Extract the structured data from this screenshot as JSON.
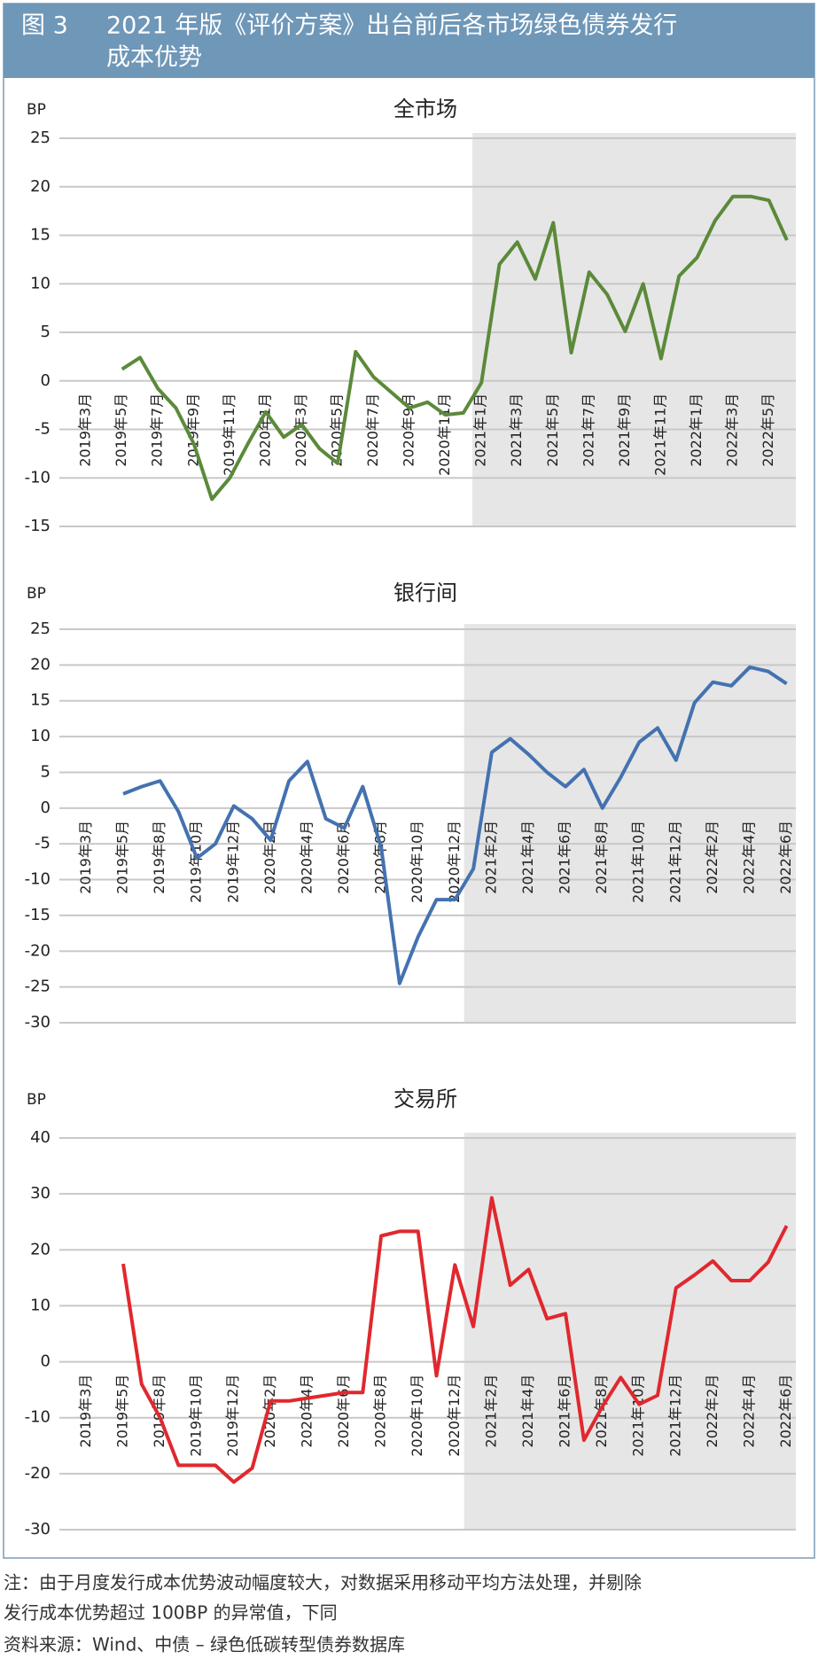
{
  "figure_label": "图 3",
  "figure_title": [
    "2021 年版《评价方案》出台前后各市场绿色债券发行",
    "成本优势"
  ],
  "notes": [
    "注：由于月度发行成本优势波动幅度较大，对数据采用移动平均方法处理，并剔除",
    "发行成本优势超过 100BP 的异常值，下同",
    "资料来源：Wind、中债 – 绿色低碳转型债券数据库"
  ],
  "chart_data": [
    {
      "type": "line",
      "title": "全市场",
      "y_unit": "BP",
      "categories": [
        "2019年3月",
        null,
        "2019年5月",
        null,
        "2019年7月",
        null,
        "2019年9月",
        null,
        "2019年11月",
        null,
        "2020年1月",
        null,
        "2020年3月",
        null,
        "2020年5月",
        null,
        "2020年7月",
        null,
        "2020年9月",
        null,
        "2020年11月",
        null,
        "2021年1月",
        null,
        "2021年3月",
        null,
        "2021年5月",
        null,
        "2021年7月",
        null,
        "2021年9月",
        null,
        "2021年11月",
        null,
        "2022年1月",
        null,
        "2022年3月",
        null,
        "2022年5月",
        null
      ],
      "series": [
        {
          "name": "全市场",
          "color": "#5b8a3a",
          "values": [
            null,
            null,
            1.2,
            2.4,
            -0.8,
            -2.8,
            -6.5,
            -12.2,
            -10,
            -6.5,
            -3.2,
            -5.8,
            -4.5,
            -7,
            -8.5,
            3,
            0.4,
            -1.2,
            -2.8,
            -2.2,
            -3.5,
            -3.3,
            -0.2,
            12,
            14.3,
            10.5,
            16.3,
            2.9,
            11.2,
            8.9,
            5.1,
            10,
            2.3,
            10.8,
            12.7,
            16.5,
            19,
            19,
            18.6,
            14.5
          ]
        }
      ],
      "ylim": [
        -15,
        25
      ],
      "yticks": [
        -15,
        -10,
        -5,
        0,
        5,
        10,
        15,
        20,
        25
      ],
      "grid": true
    },
    {
      "type": "line",
      "title": "银行间",
      "y_unit": "BP",
      "categories": [
        "2019年3月",
        null,
        "2019年5月",
        null,
        "2019年8月",
        null,
        "2019年10月",
        null,
        "2019年12月",
        null,
        "2020年2月",
        null,
        "2020年4月",
        null,
        "2020年6月",
        null,
        "2020年8月",
        null,
        "2020年10月",
        null,
        "2020年12月",
        null,
        "2021年2月",
        null,
        "2021年4月",
        null,
        "2021年6月",
        null,
        "2021年8月",
        null,
        "2021年10月",
        null,
        "2021年12月",
        null,
        "2022年2月",
        null,
        "2022年4月",
        null,
        "2022年6月"
      ],
      "series": [
        {
          "name": "银行间",
          "color": "#4472b0",
          "values": [
            null,
            null,
            2,
            3,
            3.8,
            -0.5,
            -7,
            -5,
            0.3,
            -1.5,
            -4.5,
            3.8,
            6.5,
            -1.5,
            -2.8,
            3,
            -5.5,
            -24.5,
            -18,
            -12.8,
            -12.8,
            -8.5,
            7.8,
            9.7,
            7.5,
            5,
            3,
            5.4,
            0,
            4.3,
            9.2,
            11.2,
            6.7,
            14.7,
            17.6,
            17.1,
            19.7,
            19.1,
            17.4
          ]
        }
      ],
      "ylim": [
        -30,
        25
      ],
      "yticks": [
        -30,
        -25,
        -20,
        -15,
        -10,
        -5,
        0,
        5,
        10,
        15,
        20,
        25
      ],
      "grid": true
    },
    {
      "type": "line",
      "title": "交易所",
      "y_unit": "BP",
      "categories": [
        "2019年3月",
        null,
        "2019年5月",
        null,
        "2019年8月",
        null,
        "2019年10月",
        null,
        "2019年12月",
        null,
        "2020年2月",
        null,
        "2020年4月",
        null,
        "2020年6月",
        null,
        "2020年8月",
        null,
        "2020年10月",
        null,
        "2020年12月",
        null,
        "2021年2月",
        null,
        "2021年4月",
        null,
        "2021年6月",
        null,
        "2021年8月",
        null,
        "2021年10月",
        null,
        "2021年12月",
        null,
        "2022年2月",
        null,
        "2022年4月",
        null,
        "2022年6月"
      ],
      "series": [
        {
          "name": "交易所",
          "color": "#e0282e",
          "values": [
            null,
            null,
            17.5,
            -4,
            -10,
            -18.5,
            -18.5,
            -18.5,
            -21.5,
            -19,
            -7,
            -7,
            -6.5,
            -6,
            -5.5,
            -5.5,
            22.5,
            23.3,
            23.3,
            -2.5,
            17.3,
            6.3,
            29.3,
            13.7,
            16.5,
            7.7,
            8.6,
            -14,
            -8,
            -2.8,
            -7.6,
            -6,
            13.2,
            15.5,
            18,
            14.5,
            14.5,
            17.8,
            24.3
          ]
        }
      ],
      "ylim": [
        -30,
        40
      ],
      "yticks": [
        -30,
        -20,
        -10,
        0,
        10,
        20,
        30,
        40
      ],
      "grid": true
    }
  ]
}
